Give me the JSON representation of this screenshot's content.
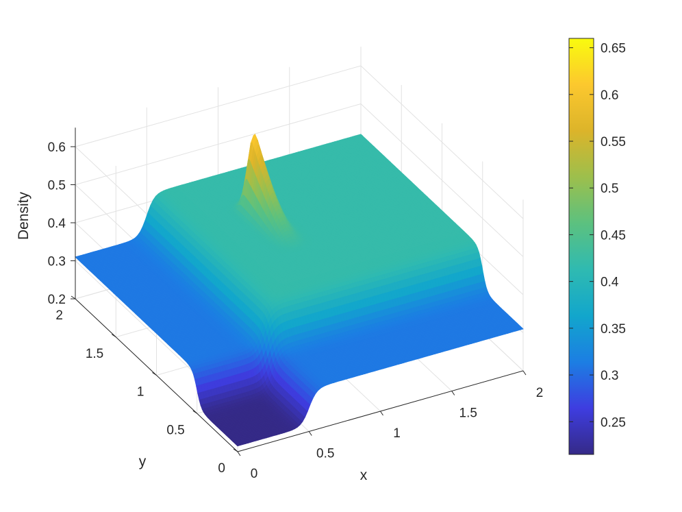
{
  "chart_data": {
    "type": "surface3d",
    "zlabel": "Density",
    "xlabel": "x",
    "ylabel": "y",
    "xlim": [
      0,
      2
    ],
    "ylim": [
      0,
      2
    ],
    "zlim": [
      0.2,
      0.65
    ],
    "x_ticks": [
      "0",
      "0.5",
      "1",
      "1.5",
      "2"
    ],
    "y_ticks": [
      "0",
      "0.5",
      "1",
      "1.5",
      "2"
    ],
    "z_ticks": [
      "0.2",
      "0.3",
      "0.4",
      "0.5",
      "0.6"
    ],
    "grid": true,
    "colormap": "parula",
    "colormap_stops": [
      "#352a87",
      "#3e3de0",
      "#1c7ee3",
      "#12a6cc",
      "#2fbab1",
      "#5cc17f",
      "#9dbf4c",
      "#dcb42a",
      "#fcc82e",
      "#f9fb0e"
    ],
    "colorbar": {
      "limits": [
        0.215,
        0.66
      ],
      "ticks": [
        "0.25",
        "0.3",
        "0.35",
        "0.4",
        "0.45",
        "0.5",
        "0.55",
        "0.6",
        "0.65"
      ]
    },
    "regions": {
      "low_corner_x_max": 0.5,
      "low_corner_y_max": 0.5,
      "high_quadrant_x_min": 0.5,
      "high_quadrant_y_min": 0.5,
      "low_density": 0.215,
      "mid_density": 0.31,
      "high_density": 0.42
    },
    "peak": {
      "x": 1.0,
      "y": 1.55,
      "density": 0.62
    }
  }
}
